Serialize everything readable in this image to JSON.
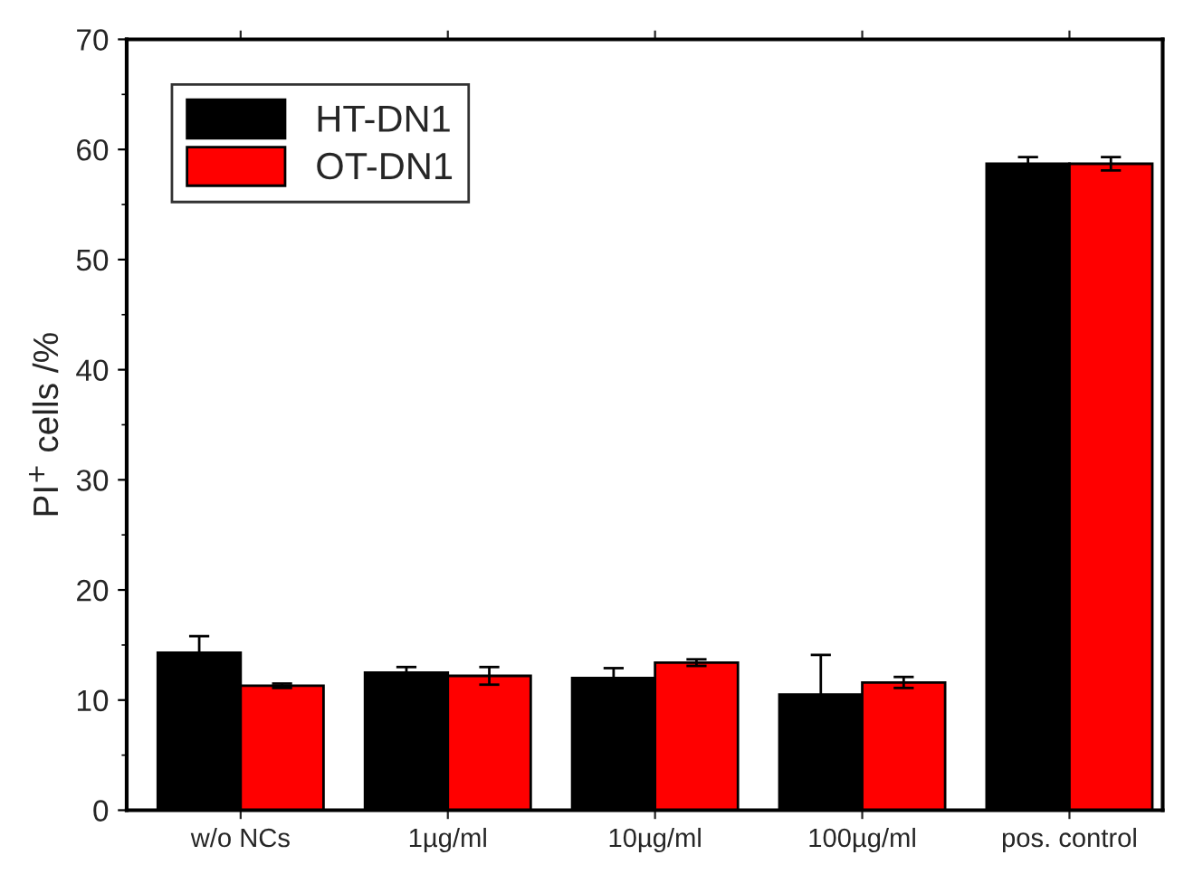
{
  "chart_data": {
    "type": "bar",
    "ylabel": "PI$^{+}$ cells /%",
    "categories": [
      "w/o NCs",
      "1µg/ml",
      "10µg/ml",
      "100µg/ml",
      "pos. control"
    ],
    "series": [
      {
        "name": "HT-DN1",
        "color": "#000000",
        "values": [
          14.3,
          12.5,
          12.0,
          10.5,
          58.7
        ],
        "errors": [
          1.5,
          0.5,
          0.9,
          3.6,
          0.6
        ]
      },
      {
        "name": "OT-DN1",
        "color": "#ff0000",
        "values": [
          11.3,
          12.2,
          13.4,
          11.6,
          58.7
        ],
        "errors": [
          0.2,
          0.8,
          0.3,
          0.5,
          0.6
        ]
      }
    ],
    "ylim": [
      0,
      70
    ],
    "yticks": [
      0,
      10,
      20,
      30,
      40,
      50,
      60,
      70
    ],
    "legend": "top left",
    "grid": false
  }
}
